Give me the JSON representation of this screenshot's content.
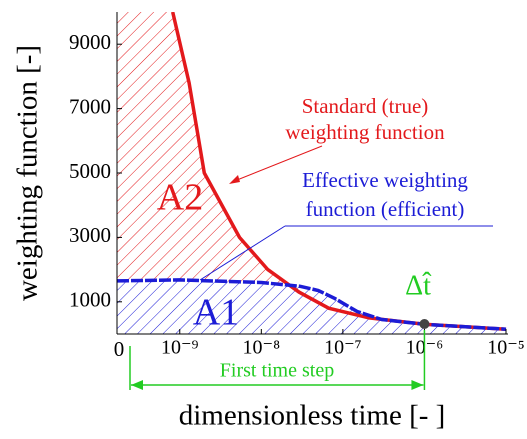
{
  "chart_data": {
    "type": "line",
    "log_x": true,
    "xlabel": "dimensionless time [- ]",
    "ylabel": "weighting function [-]",
    "xlim": [
      1.7e-10,
      1e-05
    ],
    "ylim": [
      0,
      10000
    ],
    "xticks": [
      {
        "value": 1e-09,
        "label": "10⁻⁹"
      },
      {
        "value": 1e-08,
        "label": "10⁻⁸"
      },
      {
        "value": 1e-07,
        "label": "10⁻⁷"
      },
      {
        "value": 1e-06,
        "label": "10⁻⁶"
      },
      {
        "value": 1e-05,
        "label": "10⁻⁵"
      }
    ],
    "yticks": [
      0,
      1000,
      3000,
      5000,
      7000,
      9000
    ],
    "series": [
      {
        "name": "Standard  (true) weighting function",
        "color": "#e3191c",
        "x": [
          8.2e-10,
          1.3e-09,
          2e-09,
          5.4e-09,
          1.2e-08,
          2.9e-08,
          6.7e-08,
          2.1e-07,
          1e-06,
          1e-05
        ],
        "values": [
          10000,
          7800,
          5000,
          3000,
          2000,
          1300,
          800,
          500,
          300,
          150
        ]
      },
      {
        "name": "Effective weighting function (efficient)",
        "color": "#1c1cd6",
        "x": [
          1.7e-10,
          1e-09,
          1e-08,
          3e-08,
          5e-08,
          8e-08,
          1.5e-07,
          3e-07,
          1e-06,
          1e-05
        ],
        "values": [
          1650,
          1680,
          1600,
          1480,
          1350,
          1100,
          700,
          450,
          300,
          150
        ]
      }
    ],
    "annotations": {
      "standard": [
        "Standard  (true)",
        "weighting function"
      ],
      "effective": [
        "Effective weighting",
        "function (efficient)"
      ],
      "a2": "A2",
      "a1": "A1",
      "dt": "Δt̂",
      "first_step": "First time step"
    }
  }
}
